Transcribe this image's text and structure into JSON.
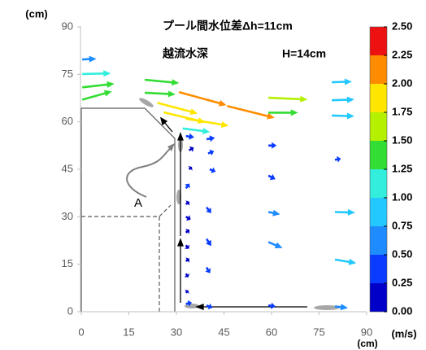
{
  "chart_data": {
    "type": "quiver",
    "title": "プール間水位差Δh=11cm",
    "annotations": [
      "越流水深",
      "H=14cm",
      "A"
    ],
    "xlabel": "(cm)",
    "ylabel": "(cm)",
    "xlim": [
      0,
      90
    ],
    "ylim": [
      0,
      90
    ],
    "xticks": [
      0,
      15,
      30,
      45,
      60,
      75,
      90
    ],
    "yticks": [
      0,
      15,
      30,
      45,
      60,
      75,
      90
    ],
    "vectors": {
      "x": [
        0.3,
        0.3,
        0.3,
        0.3,
        20,
        20,
        30.8,
        24,
        26,
        33,
        32,
        46,
        59,
        59,
        79,
        79,
        79,
        33,
        39.5,
        34,
        40,
        34,
        40.5,
        33,
        33,
        33,
        33,
        33,
        33,
        33,
        33,
        33,
        39.5,
        39.5,
        39.5,
        39.5,
        59,
        59,
        59,
        59,
        59,
        80,
        80,
        80,
        80
      ],
      "y": [
        79.7,
        75.1,
        70.9,
        67,
        73.3,
        69.2,
        69.4,
        66,
        63,
        61,
        57.9,
        65,
        67.6,
        62.9,
        72.5,
        66.8,
        62,
        55.5,
        54.5,
        51,
        50,
        45,
        45,
        39,
        34,
        30,
        25,
        21,
        16,
        12,
        6,
        2.5,
        33,
        23,
        14,
        2,
        52.5,
        43,
        31.5,
        22,
        2,
        48,
        31.5,
        16.5,
        1.7
      ],
      "u": [
        0.6,
        1.2,
        1.35,
        1.25,
        1.45,
        1.3,
        2.0,
        1.7,
        1.75,
        1.8,
        1.15,
        2.0,
        1.65,
        1.25,
        0.85,
        0.95,
        0.95,
        0.35,
        0.35,
        0.2,
        0.25,
        0.12,
        0.25,
        0.15,
        0.15,
        0.2,
        0.15,
        0.12,
        0.15,
        0.1,
        0.1,
        0.25,
        0.2,
        0.2,
        0.15,
        0.25,
        0.35,
        0.3,
        0.5,
        0.6,
        0.3,
        0.25,
        0.85,
        0.9,
        0.55
      ],
      "v": [
        0.03,
        0.03,
        0.15,
        0.35,
        -0.14,
        -0.07,
        -0.55,
        -0.45,
        -0.42,
        -0.3,
        -0.15,
        -0.5,
        -0.07,
        0,
        0.03,
        0.03,
        -0.03,
        -0.05,
        0.06,
        0.12,
        0.1,
        0.1,
        -0.1,
        0.2,
        0.1,
        -0.12,
        0.12,
        -0.15,
        0.1,
        -0.15,
        0.1,
        0.05,
        -0.25,
        -0.3,
        -0.25,
        -0.1,
        0,
        -0.15,
        -0.1,
        -0.25,
        -0.04,
        0.05,
        -0.02,
        -0.15,
        -0.07
      ]
    },
    "colorbar": {
      "label": "(m/s)",
      "lim": [
        0,
        2.5
      ],
      "colors": [
        "#0000c8",
        "#0a3cff",
        "#1e8cff",
        "#22c8ff",
        "#33eedd",
        "#33dd33",
        "#b4f000",
        "#ffe600",
        "#ff8c00",
        "#ee1111"
      ],
      "ticks": [
        {
          "value": 0,
          "label": "0.00"
        },
        {
          "value": 0.25,
          "label": "0.25"
        },
        {
          "value": 0.5,
          "label": "0.50"
        },
        {
          "value": 0.75,
          "label": "0.75"
        },
        {
          "value": 1,
          "label": "1.00"
        },
        {
          "value": 1.25,
          "label": "1.25"
        },
        {
          "value": 1.5,
          "label": "1.50"
        },
        {
          "value": 1.75,
          "label": "1.75"
        },
        {
          "value": 2,
          "label": "2.00"
        },
        {
          "value": 2.25,
          "label": "2.25"
        },
        {
          "value": 2.5,
          "label": "2.50"
        }
      ]
    }
  }
}
